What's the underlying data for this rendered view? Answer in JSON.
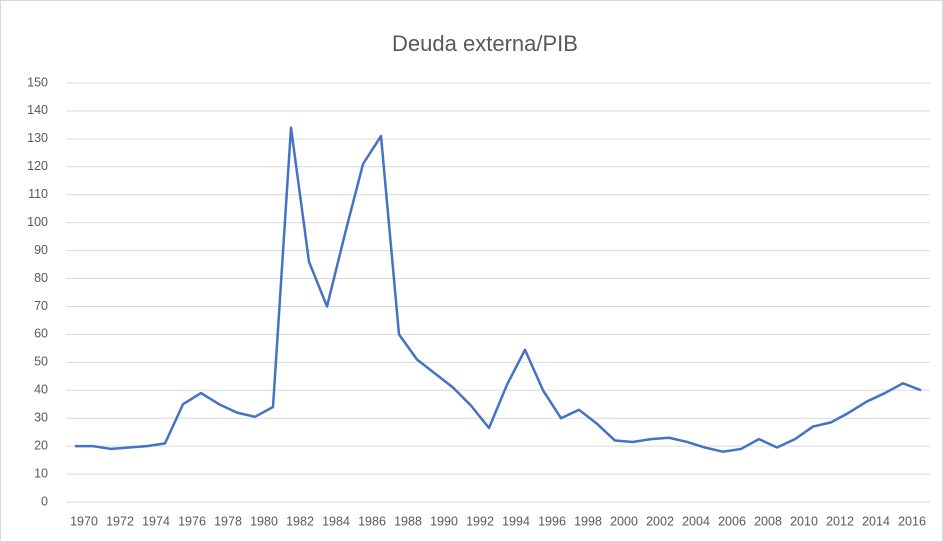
{
  "chart_data": {
    "type": "line",
    "title": "Deuda externa/PIB",
    "categories": [
      "1970",
      null,
      "1972",
      null,
      "1974",
      null,
      "1976",
      null,
      "1978",
      null,
      "1980",
      null,
      "1982",
      null,
      "1984",
      null,
      "1986",
      null,
      "1988",
      null,
      "1990",
      null,
      "1992",
      null,
      "1994",
      null,
      "1996",
      null,
      "1998",
      null,
      "2000",
      null,
      "2002",
      null,
      "2004",
      null,
      "2006",
      null,
      "2008",
      null,
      "2010",
      null,
      "2012",
      null,
      "2014",
      null,
      "2016",
      null
    ],
    "series": [
      {
        "name": "Deuda externa/PIB",
        "color": "#4472c4",
        "values": [
          20,
          20,
          19,
          19.5,
          20,
          21,
          35,
          39,
          35,
          32,
          30.5,
          34,
          134,
          86,
          70,
          96,
          121,
          131,
          60,
          51,
          46,
          41,
          34.5,
          26.5,
          42,
          54.5,
          40,
          30,
          33,
          28,
          22,
          21.5,
          22.5,
          23,
          21.5,
          19.5,
          18,
          19,
          22.5,
          19.5,
          22.5,
          27,
          28.5,
          32,
          36,
          39,
          42.5,
          40
        ]
      }
    ],
    "ylim": [
      0,
      150
    ],
    "yticks": [
      0,
      10,
      20,
      30,
      40,
      50,
      60,
      70,
      80,
      90,
      100,
      110,
      120,
      130,
      140,
      150
    ],
    "grid": true
  }
}
